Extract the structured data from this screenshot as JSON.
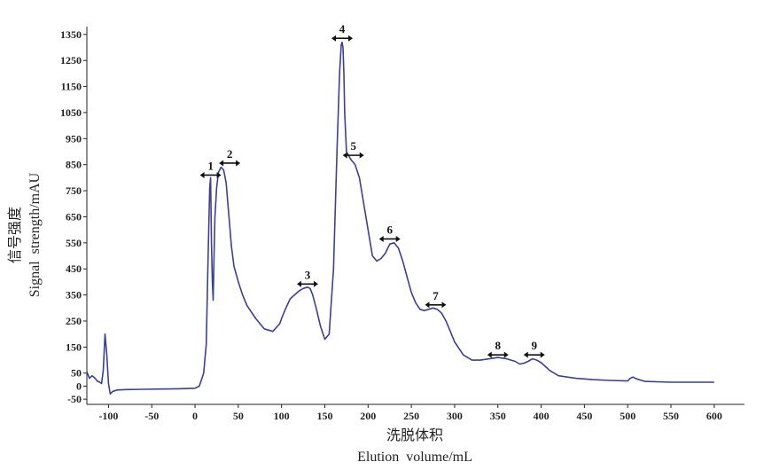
{
  "chart_data": {
    "type": "line",
    "xlabel_cn": "洗脱体积",
    "xlabel_en": "Elution  volume/mL",
    "ylabel_cn": "信号强度",
    "ylabel_en": "Signal  strength/mAU",
    "xlim": [
      -125,
      635
    ],
    "ylim": [
      -70,
      1380
    ],
    "x_ticks": [
      -100,
      -50,
      0,
      50,
      100,
      150,
      200,
      250,
      300,
      350,
      400,
      450,
      500,
      550,
      600
    ],
    "y_ticks": [
      -50,
      0,
      50,
      150,
      250,
      350,
      450,
      550,
      650,
      750,
      850,
      950,
      1050,
      1150,
      1250,
      1350
    ],
    "grid": false,
    "line_color": "#3a3f9a",
    "series": [
      {
        "x": [
          -125,
          -122,
          -119,
          -116,
          -113,
          -110,
          -108,
          -106,
          -104,
          -102,
          -100,
          -98,
          -95,
          -90,
          -80,
          -60,
          -40,
          -20,
          0,
          5,
          10,
          13,
          15,
          17,
          18,
          19,
          20,
          21,
          22,
          23,
          25,
          27,
          30,
          33,
          36,
          38,
          40,
          42,
          45,
          50,
          55,
          60,
          70,
          80,
          90,
          98,
          100,
          105,
          110,
          115,
          120,
          125,
          130,
          133,
          136,
          140,
          145,
          150,
          155,
          160,
          164,
          167,
          169,
          170,
          171,
          172,
          173,
          175,
          180,
          185,
          190,
          195,
          200,
          205,
          210,
          215,
          220,
          225,
          230,
          235,
          240,
          245,
          250,
          255,
          260,
          265,
          270,
          275,
          280,
          285,
          290,
          295,
          300,
          310,
          320,
          330,
          340,
          350,
          360,
          370,
          375,
          380,
          385,
          390,
          395,
          400,
          410,
          420,
          440,
          460,
          480,
          500,
          503,
          506,
          510,
          520,
          550,
          600
        ],
        "y": [
          55,
          30,
          40,
          32,
          20,
          15,
          10,
          60,
          200,
          120,
          10,
          -30,
          -20,
          -15,
          -13,
          -12,
          -11,
          -10,
          -8,
          0,
          50,
          160,
          480,
          760,
          800,
          550,
          400,
          330,
          500,
          650,
          760,
          820,
          840,
          830,
          780,
          700,
          620,
          540,
          460,
          400,
          350,
          310,
          260,
          220,
          210,
          240,
          260,
          300,
          335,
          350,
          365,
          375,
          380,
          375,
          350,
          300,
          230,
          180,
          200,
          450,
          900,
          1200,
          1310,
          1320,
          1300,
          1200,
          1050,
          900,
          870,
          850,
          800,
          700,
          600,
          500,
          480,
          490,
          510,
          545,
          550,
          530,
          480,
          420,
          360,
          320,
          295,
          290,
          295,
          300,
          295,
          280,
          250,
          210,
          170,
          120,
          100,
          100,
          105,
          110,
          105,
          95,
          85,
          88,
          95,
          105,
          100,
          90,
          60,
          40,
          30,
          25,
          22,
          20,
          30,
          35,
          28,
          18,
          15,
          15
        ]
      }
    ],
    "peaks": [
      {
        "label": "1",
        "x": 18,
        "y": 810
      },
      {
        "label": "2",
        "x": 40,
        "y": 856
      },
      {
        "label": "3",
        "x": 130,
        "y": 392
      },
      {
        "label": "4",
        "x": 170,
        "y": 1335
      },
      {
        "label": "5",
        "x": 183,
        "y": 886
      },
      {
        "label": "6",
        "x": 225,
        "y": 565
      },
      {
        "label": "7",
        "x": 278,
        "y": 312
      },
      {
        "label": "8",
        "x": 350,
        "y": 120
      },
      {
        "label": "9",
        "x": 392,
        "y": 120
      }
    ]
  }
}
